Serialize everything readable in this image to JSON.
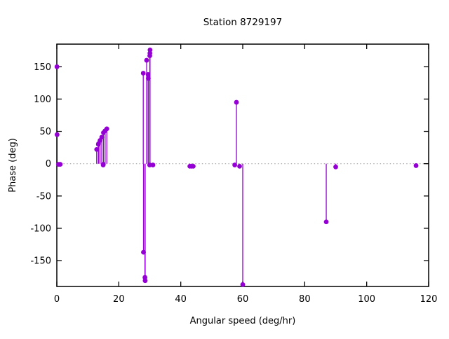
{
  "chart_data": {
    "type": "scatter",
    "style": "stem (impulses from zero line with filled circle markers)",
    "title": "Station 8729197",
    "xlabel": "Angular speed (deg/hr)",
    "ylabel": "Phase (deg)",
    "xlim": [
      0,
      120
    ],
    "ylim": [
      -190,
      185
    ],
    "xticks": [
      0,
      20,
      40,
      60,
      80,
      100,
      120
    ],
    "yticks": [
      -150,
      -100,
      -50,
      0,
      50,
      100,
      150
    ],
    "grid": false,
    "zero_line": {
      "value": 0,
      "style": "dotted",
      "color": "#999999"
    },
    "legend": "none",
    "series_color": "#9400d3",
    "points": [
      {
        "x": 0.041,
        "y": 150
      },
      {
        "x": 0.082,
        "y": 45
      },
      {
        "x": 0.544,
        "y": -1
      },
      {
        "x": 1.016,
        "y": -1
      },
      {
        "x": 1.098,
        "y": -1
      },
      {
        "x": 12.854,
        "y": 22
      },
      {
        "x": 13.399,
        "y": 30
      },
      {
        "x": 13.472,
        "y": 31
      },
      {
        "x": 13.943,
        "y": 36
      },
      {
        "x": 14.497,
        "y": 41
      },
      {
        "x": 14.959,
        "y": -2
      },
      {
        "x": 15.0,
        "y": -1
      },
      {
        "x": 15.041,
        "y": 48
      },
      {
        "x": 15.585,
        "y": 51
      },
      {
        "x": 16.139,
        "y": 54
      },
      {
        "x": 27.895,
        "y": 140
      },
      {
        "x": 27.968,
        "y": -137
      },
      {
        "x": 28.44,
        "y": -176
      },
      {
        "x": 28.513,
        "y": -181
      },
      {
        "x": 28.984,
        "y": 160
      },
      {
        "x": 29.456,
        "y": 138
      },
      {
        "x": 29.528,
        "y": 132
      },
      {
        "x": 29.959,
        "y": -2
      },
      {
        "x": 30.0,
        "y": 167
      },
      {
        "x": 30.041,
        "y": 171
      },
      {
        "x": 30.082,
        "y": 176
      },
      {
        "x": 31.016,
        "y": -2
      },
      {
        "x": 42.927,
        "y": -4
      },
      {
        "x": 43.476,
        "y": -4
      },
      {
        "x": 44.025,
        "y": -4
      },
      {
        "x": 57.424,
        "y": -2
      },
      {
        "x": 57.968,
        "y": 95
      },
      {
        "x": 58.984,
        "y": -4
      },
      {
        "x": 60.0,
        "y": -187
      },
      {
        "x": 86.952,
        "y": -90
      },
      {
        "x": 90.0,
        "y": -5
      },
      {
        "x": 115.936,
        "y": -3
      }
    ]
  }
}
